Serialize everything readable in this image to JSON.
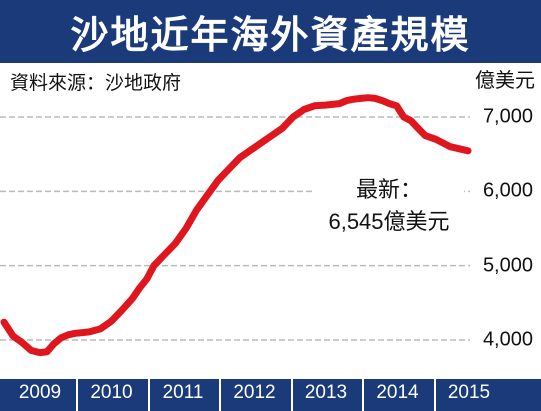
{
  "title": "沙地近年海外資產規模",
  "source": "資料來源：沙地政府",
  "colors": {
    "header_bg": "#1b3a7a",
    "line": "#e0161f",
    "grid": "#bbbbbb",
    "axis_text": "#ffffff"
  },
  "callout": {
    "line1": "最新：",
    "line2": "6,545億美元"
  },
  "chart_data": {
    "type": "line",
    "title": "沙地近年海外資產規模",
    "ylabel": "億美元",
    "ylim": [
      3850,
      7500
    ],
    "yticks": [
      4000,
      5000,
      6000,
      7000
    ],
    "ytick_labels": [
      "4,000",
      "5,000",
      "6,000",
      "7,000"
    ],
    "xlim": [
      2008.92,
      2015.75
    ],
    "xticks": [
      2009,
      2010,
      2011,
      2012,
      2013,
      2014,
      2015
    ],
    "xtick_labels": [
      "2009",
      "2010",
      "2011",
      "2012",
      "2013",
      "2014",
      "2015"
    ],
    "grid": true,
    "series": [
      {
        "x": [
          2008.95,
          2009.08,
          2009.2,
          2009.33,
          2009.45,
          2009.55,
          2009.65,
          2009.75,
          2009.85,
          2009.95,
          2010.05,
          2010.15,
          2010.3,
          2010.45,
          2010.6,
          2010.75,
          2010.85,
          2010.95,
          2011.05,
          2011.2,
          2011.35,
          2011.5,
          2011.65,
          2011.8,
          2011.95,
          2012.1,
          2012.25,
          2012.4,
          2012.55,
          2012.7,
          2012.85,
          2013.0,
          2013.15,
          2013.3,
          2013.45,
          2013.55,
          2013.65,
          2013.75,
          2013.85,
          2013.95,
          2014.05,
          2014.15,
          2014.25,
          2014.35,
          2014.45,
          2014.55,
          2014.65,
          2014.75,
          2014.85,
          2015.0,
          2015.2,
          2015.45
        ],
        "values": [
          4240,
          4050,
          3970,
          3860,
          3830,
          3840,
          3950,
          4030,
          4070,
          4090,
          4100,
          4110,
          4150,
          4250,
          4400,
          4560,
          4700,
          4820,
          5000,
          5150,
          5300,
          5500,
          5750,
          5950,
          6150,
          6300,
          6450,
          6550,
          6650,
          6750,
          6850,
          7000,
          7100,
          7150,
          7160,
          7170,
          7180,
          7220,
          7240,
          7250,
          7260,
          7250,
          7220,
          7180,
          7150,
          7000,
          6950,
          6850,
          6750,
          6700,
          6600,
          6545
        ]
      }
    ]
  }
}
